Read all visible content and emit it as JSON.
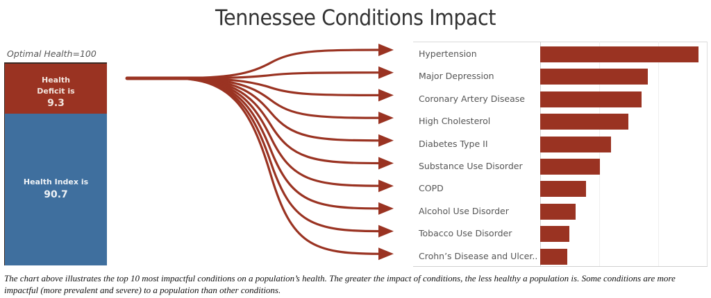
{
  "title": "Tennessee Conditions Impact",
  "index_panel": {
    "optimal_label": "Optimal Health=100",
    "deficit_label_line1": "Health",
    "deficit_label_line2": "Deficit is",
    "deficit_value": "9.3",
    "index_label": "Health Index is",
    "index_value": "90.7",
    "colors": {
      "deficit": "#9a3322",
      "index": "#3f6f9e"
    }
  },
  "caption": "The chart above illustrates the top 10 most impactful conditions  on a population’s health. The greater the  impact of conditions, the less healthy a population is. Some conditions are more impactful (more prevalent and severe) to a population than other conditions.",
  "chart_data": [
    {
      "type": "bar",
      "orientation": "stacked-vertical",
      "title": "Optimal Health=100",
      "categories": [
        "Health Deficit",
        "Health Index"
      ],
      "values": [
        9.3,
        90.7
      ],
      "colors": [
        "#9a3322",
        "#3f6f9e"
      ],
      "ylim": [
        0,
        100
      ]
    },
    {
      "type": "bar",
      "orientation": "horizontal",
      "title": "Tennessee Conditions Impact",
      "xlabel": "",
      "ylabel": "",
      "note": "No axis tick labels shown; values are relative impact in gridline units (each gridline = 1 unit).",
      "categories": [
        "Hypertension",
        "Major Depression",
        "Coronary Artery Disease",
        "High Cholesterol",
        "Diabetes Type II",
        "Substance Use Disorder",
        "COPD",
        "Alcohol Use Disorder",
        "Tobacco Use Disorder",
        "Crohn’s Disease and Ulcer.."
      ],
      "values": [
        2.68,
        1.82,
        1.72,
        1.49,
        1.2,
        1.01,
        0.78,
        0.6,
        0.49,
        0.46
      ],
      "xlim": [
        0,
        2.82
      ],
      "gridlines": [
        1,
        2
      ],
      "grid": true,
      "color": "#9a3322",
      "legend": "none"
    }
  ]
}
